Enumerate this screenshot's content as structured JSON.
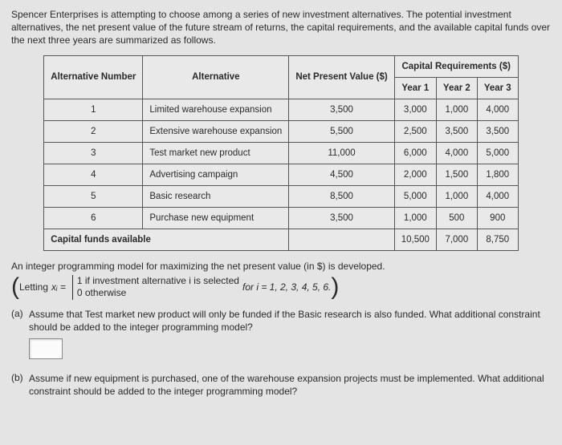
{
  "intro": "Spencer Enterprises is attempting to choose among a series of new investment alternatives. The potential investment alternatives, the net present value of the future stream of returns, the capital requirements, and the available capital funds over the next three years are summarized as follows.",
  "table": {
    "head_alt_num": "Alternative Number",
    "head_alt": "Alternative",
    "head_npv": "Net Present Value ($)",
    "head_cap": "Capital Requirements ($)",
    "head_y1": "Year 1",
    "head_y2": "Year 2",
    "head_y3": "Year 3",
    "rows": [
      {
        "num": "1",
        "name": "Limited warehouse expansion",
        "npv": "3,500",
        "y1": "3,000",
        "y2": "1,000",
        "y3": "4,000"
      },
      {
        "num": "2",
        "name": "Extensive warehouse expansion",
        "npv": "5,500",
        "y1": "2,500",
        "y2": "3,500",
        "y3": "3,500"
      },
      {
        "num": "3",
        "name": "Test market new product",
        "npv": "11,000",
        "y1": "6,000",
        "y2": "4,000",
        "y3": "5,000"
      },
      {
        "num": "4",
        "name": "Advertising campaign",
        "npv": "4,500",
        "y1": "2,000",
        "y2": "1,500",
        "y3": "1,800"
      },
      {
        "num": "5",
        "name": "Basic research",
        "npv": "8,500",
        "y1": "5,000",
        "y2": "1,000",
        "y3": "4,000"
      },
      {
        "num": "6",
        "name": "Purchase new equipment",
        "npv": "3,500",
        "y1": "1,000",
        "y2": "500",
        "y3": "900"
      }
    ],
    "capfunds_label": "Capital funds available",
    "capfunds": {
      "y1": "10,500",
      "y2": "7,000",
      "y3": "8,750"
    }
  },
  "model_line": "An integer programming model for maximizing the net present value (in $) is developed.",
  "letting": {
    "prefix": "Letting ",
    "var": "xᵢ = ",
    "case1": "1 if investment alternative i is selected",
    "case2": "0 otherwise",
    "forline": " for i = 1, 2, 3, 4, 5, 6."
  },
  "qa": {
    "tag": "(a)",
    "text": "Assume that Test market new product will only be funded if the Basic research is also funded. What additional constraint should be added to the integer programming model?"
  },
  "qb": {
    "tag": "(b)",
    "text": "Assume if new equipment is purchased, one of the warehouse expansion projects must be implemented. What additional constraint should be added to the integer programming model?"
  }
}
